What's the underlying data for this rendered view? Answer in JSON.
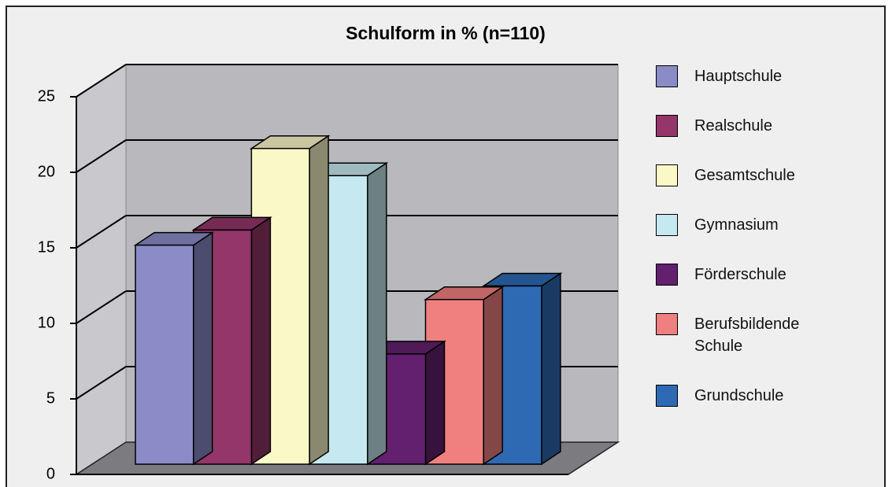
{
  "chart_data": {
    "type": "bar3d",
    "title": "Schulform in % (n=110)",
    "categories": [
      "Hauptschule",
      "Realschule",
      "Gesamtschule",
      "Gymnasium",
      "Förderschule",
      "Berufsbildende Schule",
      "Grundschule"
    ],
    "values": [
      14.5,
      15.5,
      20.9,
      19.1,
      7.3,
      10.9,
      11.8
    ],
    "colors": [
      "#8b8bc8",
      "#94366a",
      "#fbf8c8",
      "#c6e8f0",
      "#62206e",
      "#f08080",
      "#2e6ab4"
    ],
    "ylim": [
      0,
      25
    ],
    "yticks": [
      0,
      5,
      10,
      15,
      20,
      25
    ],
    "grid": true,
    "legend": "right"
  }
}
